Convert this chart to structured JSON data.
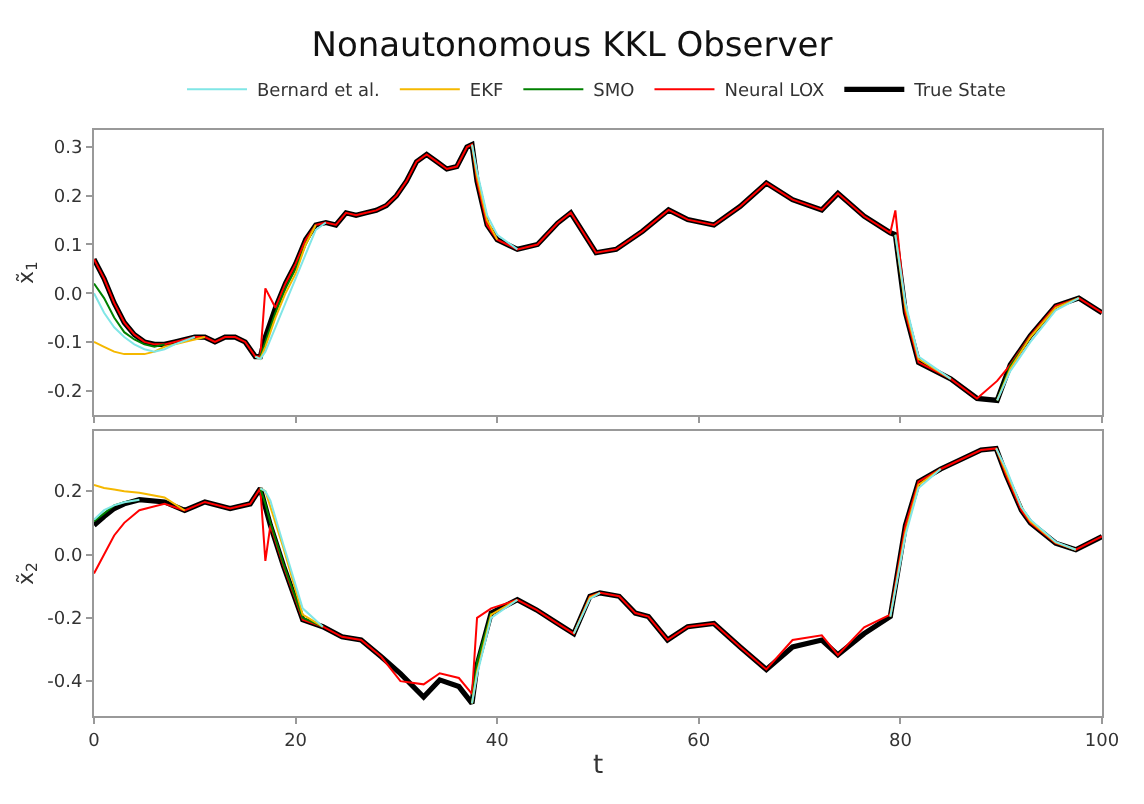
{
  "chart_data": [
    {
      "type": "line",
      "title": "Nonautonomous KKL Observer",
      "ylabel": "x̃$_{1}$",
      "legend": "top",
      "tick_labels": "y",
      "line_style": "solid",
      "marker": "none",
      "xlim": [
        0,
        100
      ],
      "xticks": [
        0,
        20,
        40,
        60,
        80,
        100
      ],
      "ylim": [
        -0.25,
        0.335
      ],
      "yticks": [
        -0.2,
        -0.1,
        {
          "value": 0,
          "label": "0.0"
        },
        0.1,
        0.2,
        0.3
      ],
      "x": [
        0,
        1,
        2,
        3,
        4,
        5,
        6,
        7,
        8,
        10,
        11,
        12,
        13,
        14,
        15,
        16,
        16.5,
        17,
        18,
        19,
        20,
        21,
        22,
        23,
        24,
        25,
        26,
        27,
        28,
        29,
        30,
        31,
        32,
        33,
        34,
        35,
        36,
        37,
        37.5,
        38,
        39,
        40,
        42,
        44,
        46,
        47.3,
        49.8,
        51.8,
        54.4,
        57,
        58.9,
        61.5,
        64.1,
        66.7,
        69.3,
        72.2,
        73.8,
        76.4,
        79,
        79.5,
        80.5,
        81.8,
        85,
        87.6,
        89.6,
        90.9,
        92.9,
        95.4,
        97.7,
        100
      ],
      "series": [
        {
          "name": "Bernard et al.",
          "color": "#80e6e6",
          "values": [
            0.0,
            -0.04,
            -0.07,
            -0.09,
            -0.105,
            -0.115,
            -0.12,
            -0.115,
            -0.105,
            -0.09,
            null,
            null,
            null,
            null,
            null,
            -0.13,
            -0.135,
            -0.12,
            -0.07,
            -0.02,
            0.03,
            0.08,
            0.13,
            0.145,
            null,
            null,
            null,
            null,
            null,
            null,
            null,
            null,
            null,
            null,
            null,
            null,
            null,
            null,
            0.305,
            0.25,
            0.16,
            0.12,
            0.09,
            null,
            null,
            null,
            null,
            null,
            null,
            null,
            null,
            null,
            null,
            null,
            null,
            null,
            null,
            null,
            null,
            0.12,
            -0.02,
            -0.13,
            -0.176,
            null,
            -0.22,
            -0.16,
            -0.1,
            -0.035,
            -0.01,
            null
          ]
        },
        {
          "name": "EKF",
          "color": "#f5b800",
          "values": [
            -0.1,
            -0.11,
            -0.12,
            -0.125,
            -0.125,
            -0.125,
            -0.12,
            -0.11,
            -0.105,
            -0.095,
            -0.09,
            null,
            null,
            null,
            null,
            -0.13,
            -0.135,
            -0.11,
            -0.05,
            0.0,
            0.04,
            0.1,
            0.14,
            null,
            null,
            null,
            null,
            null,
            null,
            null,
            null,
            null,
            null,
            null,
            null,
            null,
            null,
            null,
            0.305,
            0.24,
            0.15,
            0.11,
            null,
            null,
            null,
            null,
            null,
            null,
            null,
            null,
            null,
            null,
            null,
            null,
            null,
            null,
            null,
            null,
            null,
            0.12,
            -0.03,
            -0.135,
            -0.176,
            null,
            -0.22,
            -0.155,
            -0.09,
            -0.03,
            -0.01,
            null
          ]
        },
        {
          "name": "SMO",
          "color": "#008000",
          "values": [
            0.02,
            -0.01,
            -0.05,
            -0.08,
            -0.095,
            -0.105,
            -0.11,
            -0.105,
            null,
            null,
            null,
            null,
            null,
            null,
            null,
            null,
            -0.13,
            -0.1,
            -0.04,
            0.01,
            0.05,
            0.1,
            0.14,
            null,
            null,
            null,
            null,
            null,
            null,
            null,
            null,
            null,
            null,
            null,
            null,
            null,
            null,
            null,
            null,
            null,
            null,
            null,
            null,
            null,
            null,
            null,
            null,
            null,
            null,
            null,
            null,
            null,
            null,
            null,
            null,
            null,
            null,
            null,
            null,
            null,
            null,
            null,
            null,
            null,
            -0.22,
            -0.15,
            -0.09,
            -0.03,
            -0.01,
            null
          ]
        },
        {
          "name": "Neural LOX",
          "color": "#ff0000",
          "values": [
            0.07,
            0.03,
            -0.02,
            -0.06,
            -0.085,
            -0.1,
            -0.105,
            -0.105,
            -0.1,
            -0.09,
            -0.09,
            -0.1,
            -0.09,
            -0.09,
            -0.1,
            -0.13,
            -0.13,
            0.01,
            -0.03,
            0.02,
            0.06,
            0.11,
            0.14,
            0.145,
            0.14,
            0.165,
            0.16,
            0.165,
            0.17,
            0.18,
            0.2,
            0.23,
            0.27,
            0.285,
            0.27,
            0.255,
            0.26,
            0.3,
            0.305,
            0.23,
            0.14,
            0.11,
            0.09,
            0.1,
            0.144,
            0.165,
            0.083,
            0.09,
            0.127,
            0.171,
            0.151,
            0.14,
            0.178,
            0.226,
            0.192,
            0.171,
            0.205,
            0.158,
            0.124,
            0.17,
            -0.04,
            -0.142,
            -0.176,
            -0.216,
            -0.18,
            -0.147,
            -0.087,
            -0.026,
            -0.01,
            -0.04
          ]
        },
        {
          "name": "True State",
          "color": "#000000",
          "values": [
            0.07,
            0.03,
            -0.02,
            -0.06,
            -0.085,
            -0.1,
            -0.105,
            -0.105,
            -0.1,
            -0.09,
            -0.09,
            -0.1,
            -0.09,
            -0.09,
            -0.1,
            -0.13,
            -0.13,
            -0.09,
            -0.03,
            0.02,
            0.06,
            0.11,
            0.14,
            0.145,
            0.14,
            0.165,
            0.16,
            0.165,
            0.17,
            0.18,
            0.2,
            0.23,
            0.27,
            0.285,
            0.27,
            0.255,
            0.26,
            0.3,
            0.305,
            0.23,
            0.14,
            0.11,
            0.09,
            0.1,
            0.144,
            0.165,
            0.083,
            0.09,
            0.127,
            0.171,
            0.151,
            0.14,
            0.178,
            0.226,
            0.192,
            0.171,
            0.205,
            0.158,
            0.124,
            0.12,
            -0.04,
            -0.142,
            -0.176,
            -0.216,
            -0.22,
            -0.147,
            -0.087,
            -0.026,
            -0.01,
            -0.04
          ]
        }
      ]
    },
    {
      "type": "line",
      "xlabel": "t",
      "ylabel": "x̃$_{2}$",
      "line_style": "solid",
      "marker": "none",
      "xlim": [
        0,
        100
      ],
      "xticks": [
        0,
        20,
        40,
        60,
        80,
        100
      ],
      "ylim": [
        -0.51,
        0.39
      ],
      "yticks": [
        -0.4,
        -0.2,
        {
          "value": 0,
          "label": "0.0"
        },
        0.2
      ],
      "x": [
        0,
        1,
        2,
        3,
        4.5,
        7,
        9,
        11,
        13.5,
        15.5,
        16.5,
        17,
        17.5,
        18.8,
        20.7,
        22.7,
        24.6,
        26.5,
        28.5,
        30.4,
        32.7,
        34.3,
        36.2,
        37.5,
        38,
        39.4,
        42,
        43.9,
        46,
        47.6,
        49.2,
        50.2,
        52.1,
        53.7,
        55,
        56.9,
        58.9,
        61.5,
        64.1,
        66.7,
        69.3,
        72.2,
        73.8,
        76.4,
        79,
        80.5,
        81.8,
        84,
        86,
        88,
        89.5,
        90.5,
        92,
        92.9,
        95.4,
        97.4,
        100
      ],
      "series": [
        {
          "color": "#80e6e6",
          "values": [
            0.11,
            0.14,
            0.155,
            0.165,
            0.173,
            null,
            null,
            null,
            null,
            null,
            0.209,
            0.2,
            0.17,
            0.03,
            -0.17,
            -0.228,
            null,
            null,
            null,
            null,
            null,
            null,
            null,
            -0.47,
            -0.38,
            -0.2,
            -0.143,
            null,
            null,
            -0.25,
            -0.14,
            -0.121,
            null,
            null,
            null,
            null,
            null,
            null,
            null,
            null,
            null,
            null,
            null,
            null,
            -0.196,
            0.06,
            0.21,
            0.27,
            null,
            null,
            0.335,
            0.27,
            0.15,
            0.11,
            0.04,
            0.015,
            null
          ]
        },
        {
          "color": "#f5b800",
          "values": [
            0.22,
            0.21,
            0.205,
            0.2,
            0.195,
            0.18,
            0.139,
            null,
            null,
            null,
            0.209,
            0.2,
            0.15,
            0.02,
            -0.19,
            -0.228,
            null,
            null,
            null,
            null,
            null,
            null,
            null,
            -0.47,
            -0.37,
            -0.19,
            -0.143,
            null,
            null,
            -0.25,
            -0.135,
            -0.121,
            null,
            null,
            null,
            null,
            null,
            null,
            null,
            null,
            null,
            null,
            null,
            null,
            -0.196,
            0.07,
            0.22,
            0.27,
            null,
            null,
            0.335,
            0.26,
            0.15,
            0.105,
            0.038,
            0.015,
            null
          ]
        },
        {
          "color": "#008000",
          "values": [
            0.105,
            0.13,
            0.155,
            0.165,
            0.173,
            null,
            null,
            null,
            null,
            null,
            0.209,
            0.16,
            0.1,
            -0.03,
            -0.2,
            -0.228,
            null,
            null,
            null,
            null,
            null,
            null,
            null,
            -0.47,
            -0.34,
            -0.185,
            null,
            null,
            null,
            null,
            null,
            null,
            null,
            null,
            null,
            null,
            null,
            null,
            null,
            null,
            null,
            null,
            null,
            null,
            null,
            null,
            null,
            null,
            null,
            null,
            null,
            null,
            null,
            null,
            null,
            null,
            null
          ]
        },
        {
          "color": "#ff0000",
          "values": [
            -0.06,
            0.0,
            0.06,
            0.1,
            0.14,
            0.16,
            0.139,
            0.166,
            0.145,
            0.16,
            0.209,
            -0.02,
            0.092,
            -0.036,
            -0.206,
            -0.228,
            -0.26,
            -0.27,
            -0.323,
            -0.4,
            -0.41,
            -0.375,
            -0.39,
            -0.44,
            -0.2,
            -0.17,
            -0.143,
            -0.175,
            -0.218,
            -0.25,
            -0.132,
            -0.121,
            -0.132,
            -0.185,
            -0.196,
            -0.27,
            -0.228,
            -0.218,
            -0.292,
            -0.363,
            -0.27,
            -0.255,
            -0.317,
            -0.23,
            -0.19,
            0.092,
            0.23,
            0.27,
            0.3,
            0.33,
            0.335,
            0.25,
            0.14,
            0.1,
            0.036,
            0.015,
            0.057
          ]
        },
        {
          "color": "#000000",
          "values": [
            0.092,
            0.12,
            0.145,
            0.16,
            0.173,
            0.166,
            0.139,
            0.166,
            0.145,
            0.16,
            0.209,
            0.15,
            0.092,
            -0.036,
            -0.206,
            -0.228,
            -0.26,
            -0.27,
            -0.323,
            -0.376,
            -0.45,
            -0.396,
            -0.417,
            -0.47,
            -0.35,
            -0.185,
            -0.143,
            -0.175,
            -0.218,
            -0.25,
            -0.132,
            -0.121,
            -0.132,
            -0.185,
            -0.196,
            -0.27,
            -0.228,
            -0.218,
            -0.292,
            -0.363,
            -0.292,
            -0.27,
            -0.317,
            -0.25,
            -0.196,
            0.092,
            0.23,
            0.27,
            0.3,
            0.33,
            0.335,
            0.25,
            0.14,
            0.1,
            0.036,
            0.015,
            0.057
          ]
        }
      ]
    }
  ]
}
